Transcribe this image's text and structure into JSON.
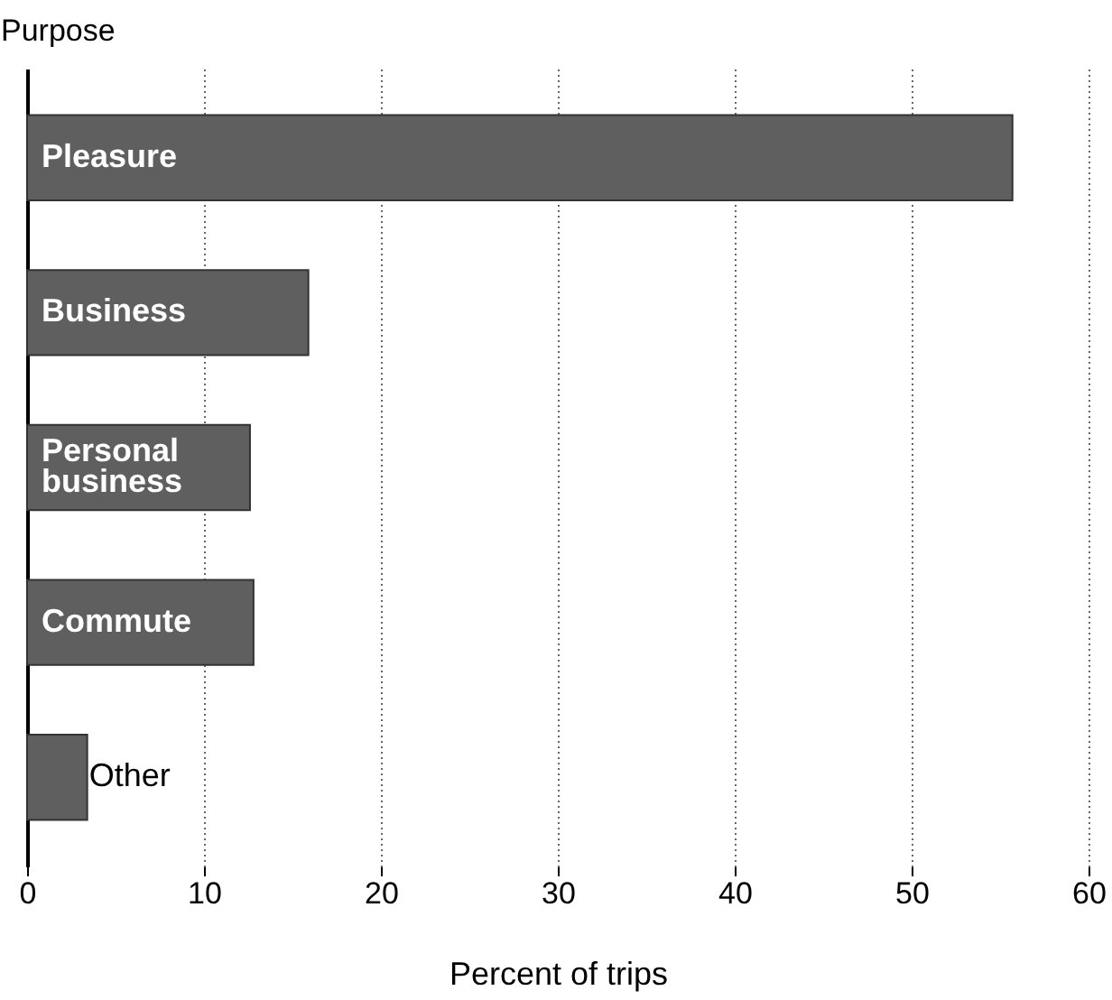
{
  "chart_data": {
    "type": "bar",
    "orientation": "horizontal",
    "ylabel": "Purpose",
    "xlabel": "Percent of trips",
    "categories": [
      "Pleasure",
      "Business",
      "Personal business",
      "Commute",
      "Other"
    ],
    "values": [
      55.7,
      15.9,
      12.6,
      12.8,
      3.4
    ],
    "color": "#5f5f5f",
    "xlim": [
      0,
      60
    ],
    "xticks": [
      0,
      10,
      20,
      30,
      40,
      50,
      60
    ],
    "grid": "x",
    "tick_labels": "x"
  }
}
